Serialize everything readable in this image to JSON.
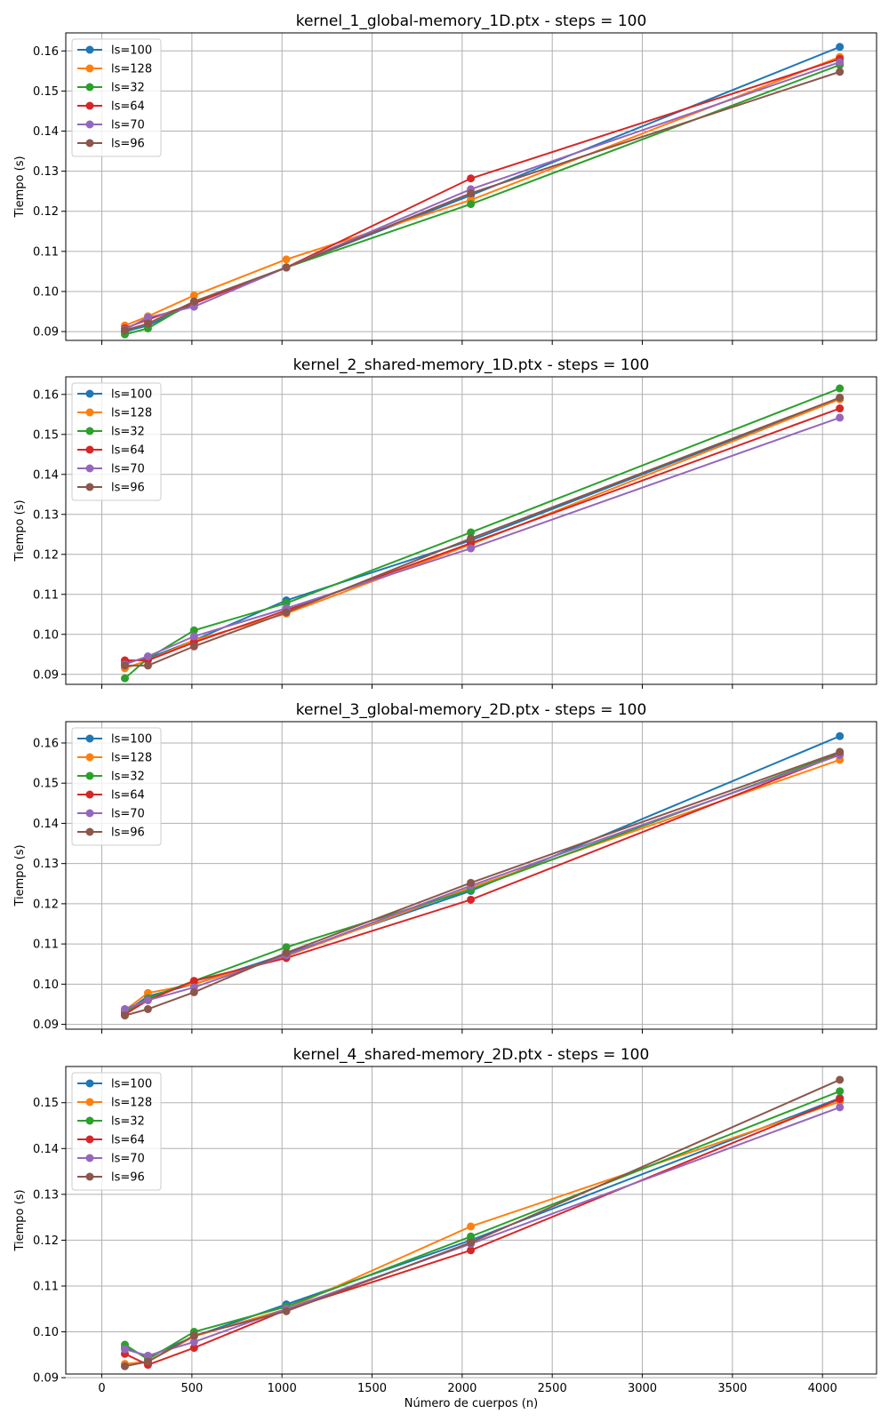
{
  "figure": {
    "xlabel": "Número de cuerpos (n)",
    "ylabel": "Tiempo (s)"
  },
  "colors": {
    "ls=100": "#1f77b4",
    "ls=128": "#ff7f0e",
    "ls=32": "#2ca02c",
    "ls=64": "#d62728",
    "ls=70": "#9467bd",
    "ls=96": "#8c564b"
  },
  "chart_data": [
    {
      "type": "line",
      "title": "kernel_1_global-memory_1D.ptx - steps = 100",
      "xlabel": "",
      "ylabel": "Tiempo (s)",
      "x": [
        128,
        256,
        512,
        1024,
        2048,
        4096
      ],
      "xlim": [
        -80,
        4300
      ],
      "ylim": [
        0.0878,
        0.1645
      ],
      "xticks": [],
      "yticks": [
        0.09,
        0.1,
        0.11,
        0.12,
        0.13,
        0.14,
        0.15,
        0.16
      ],
      "grid": true,
      "legend": "top-left",
      "series": [
        {
          "name": "ls=100",
          "values": [
            0.09,
            0.0915,
            0.097,
            0.106,
            0.124,
            0.161
          ]
        },
        {
          "name": "ls=128",
          "values": [
            0.0915,
            0.0938,
            0.099,
            0.108,
            0.1228,
            0.1585
          ]
        },
        {
          "name": "ls=32",
          "values": [
            0.0893,
            0.0908,
            0.0975,
            0.106,
            0.1218,
            0.1565
          ]
        },
        {
          "name": "ls=64",
          "values": [
            0.0908,
            0.093,
            0.097,
            0.106,
            0.1282,
            0.158
          ]
        },
        {
          "name": "ls=70",
          "values": [
            0.0905,
            0.0935,
            0.0962,
            0.106,
            0.1255,
            0.1572
          ]
        },
        {
          "name": "ls=96",
          "values": [
            0.0903,
            0.092,
            0.0975,
            0.106,
            0.1245,
            0.1548
          ]
        }
      ]
    },
    {
      "type": "line",
      "title": "kernel_2_shared-memory_1D.ptx - steps = 100",
      "xlabel": "",
      "ylabel": "Tiempo (s)",
      "x": [
        128,
        256,
        512,
        1024,
        2048,
        4096
      ],
      "xlim": [
        -80,
        4300
      ],
      "ylim": [
        0.0875,
        0.1644
      ],
      "xticks": [],
      "yticks": [
        0.09,
        0.1,
        0.11,
        0.12,
        0.13,
        0.14,
        0.15,
        0.16
      ],
      "grid": true,
      "legend": "top-left",
      "series": [
        {
          "name": "ls=100",
          "values": [
            0.093,
            0.094,
            0.0985,
            0.1085,
            0.1235,
            0.159
          ]
        },
        {
          "name": "ls=128",
          "values": [
            0.0915,
            0.0935,
            0.0985,
            0.1052,
            0.1225,
            0.1588
          ]
        },
        {
          "name": "ls=32",
          "values": [
            0.089,
            0.094,
            0.101,
            0.1078,
            0.1255,
            0.1615
          ]
        },
        {
          "name": "ls=64",
          "values": [
            0.0935,
            0.0935,
            0.098,
            0.106,
            0.1228,
            0.1565
          ]
        },
        {
          "name": "ls=70",
          "values": [
            0.0925,
            0.0945,
            0.0995,
            0.1065,
            0.1215,
            0.1542
          ]
        },
        {
          "name": "ls=96",
          "values": [
            0.0922,
            0.0922,
            0.097,
            0.1055,
            0.124,
            0.1592
          ]
        }
      ]
    },
    {
      "type": "line",
      "title": "kernel_3_global-memory_2D.ptx - steps = 100",
      "xlabel": "",
      "ylabel": "Tiempo (s)",
      "x": [
        128,
        256,
        512,
        1024,
        2048,
        4096
      ],
      "xlim": [
        -80,
        4300
      ],
      "ylim": [
        0.0888,
        0.1653
      ],
      "xticks": [],
      "yticks": [
        0.09,
        0.1,
        0.11,
        0.12,
        0.13,
        0.14,
        0.15,
        0.16
      ],
      "grid": true,
      "legend": "top-left",
      "series": [
        {
          "name": "ls=100",
          "values": [
            0.093,
            0.097,
            0.1,
            0.1075,
            0.1232,
            0.1617
          ]
        },
        {
          "name": "ls=128",
          "values": [
            0.0935,
            0.0978,
            0.1,
            0.107,
            0.124,
            0.1558
          ]
        },
        {
          "name": "ls=32",
          "values": [
            0.093,
            0.0965,
            0.1008,
            0.1092,
            0.1235,
            0.1575
          ]
        },
        {
          "name": "ls=64",
          "values": [
            0.0925,
            0.096,
            0.1008,
            0.1065,
            0.121,
            0.1572
          ]
        },
        {
          "name": "ls=70",
          "values": [
            0.0938,
            0.096,
            0.0992,
            0.1072,
            0.1245,
            0.157
          ]
        },
        {
          "name": "ls=96",
          "values": [
            0.0922,
            0.0938,
            0.098,
            0.1078,
            0.1252,
            0.1578
          ]
        }
      ]
    },
    {
      "type": "line",
      "title": "kernel_4_shared-memory_2D.ptx - steps = 100",
      "xlabel": "Número de cuerpos (n)",
      "ylabel": "Tiempo (s)",
      "x": [
        128,
        256,
        512,
        1024,
        2048,
        4096
      ],
      "xlim": [
        -200,
        4300
      ],
      "ylim": [
        0.0908,
        0.1579
      ],
      "xticks": [
        0,
        500,
        1000,
        1500,
        2000,
        2500,
        3000,
        3500,
        4000
      ],
      "yticks": [
        0.09,
        0.1,
        0.11,
        0.12,
        0.13,
        0.14,
        0.15
      ],
      "grid": true,
      "legend": "top-left",
      "series": [
        {
          "name": "ls=100",
          "values": [
            0.0965,
            0.0945,
            0.099,
            0.106,
            0.12,
            0.151
          ]
        },
        {
          "name": "ls=128",
          "values": [
            0.093,
            0.0935,
            0.099,
            0.105,
            0.123,
            0.1502
          ]
        },
        {
          "name": "ls=32",
          "values": [
            0.0972,
            0.094,
            0.1,
            0.1055,
            0.1208,
            0.1525
          ]
        },
        {
          "name": "ls=64",
          "values": [
            0.0952,
            0.0928,
            0.0965,
            0.1048,
            0.1178,
            0.1508
          ]
        },
        {
          "name": "ls=70",
          "values": [
            0.0962,
            0.0948,
            0.0978,
            0.105,
            0.1192,
            0.149
          ]
        },
        {
          "name": "ls=96",
          "values": [
            0.0925,
            0.0935,
            0.0992,
            0.1045,
            0.1195,
            0.155
          ]
        }
      ]
    }
  ]
}
